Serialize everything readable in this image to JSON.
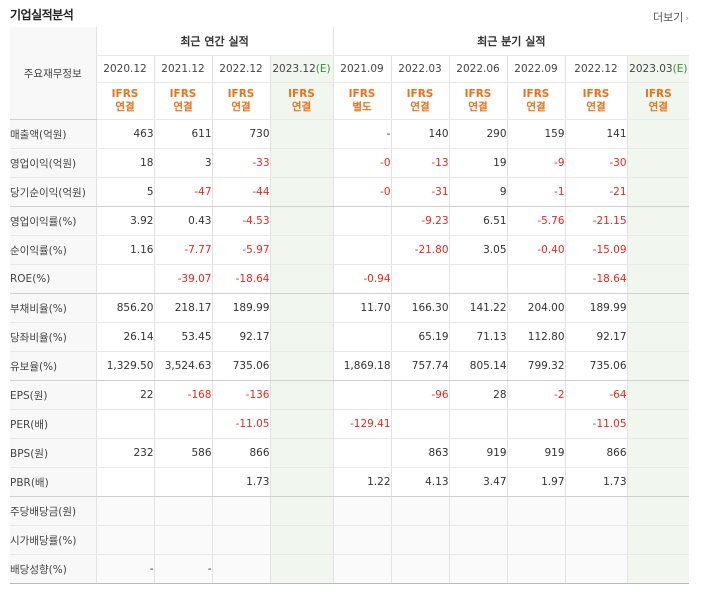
{
  "title": "기업실적분석",
  "more_link": "더보기",
  "row_header": "주요재무정보",
  "annual_header": "최근 연간 실적",
  "quarter_header": "최근 분기 실적",
  "periods": [
    {
      "label": "2020.12",
      "est_mark": "",
      "basis": [
        "IFRS",
        "연결"
      ],
      "est": false
    },
    {
      "label": "2021.12",
      "est_mark": "",
      "basis": [
        "IFRS",
        "연결"
      ],
      "est": false
    },
    {
      "label": "2022.12",
      "est_mark": "",
      "basis": [
        "IFRS",
        "연결"
      ],
      "est": false
    },
    {
      "label": "2023.12",
      "est_mark": "(E)",
      "basis": [
        "IFRS",
        "연결"
      ],
      "est": true
    },
    {
      "label": "2021.09",
      "est_mark": "",
      "basis": [
        "IFRS",
        "별도"
      ],
      "est": false
    },
    {
      "label": "2022.03",
      "est_mark": "",
      "basis": [
        "IFRS",
        "연결"
      ],
      "est": false
    },
    {
      "label": "2022.06",
      "est_mark": "",
      "basis": [
        "IFRS",
        "연결"
      ],
      "est": false
    },
    {
      "label": "2022.09",
      "est_mark": "",
      "basis": [
        "IFRS",
        "연결"
      ],
      "est": false
    },
    {
      "label": "2022.12",
      "est_mark": "",
      "basis": [
        "IFRS",
        "연결"
      ],
      "est": false
    },
    {
      "label": "2023.03",
      "est_mark": "(E)",
      "basis": [
        "IFRS",
        "연결"
      ],
      "est": true
    }
  ],
  "rows": [
    {
      "label": "매출액(억원)",
      "values": [
        "463",
        "611",
        "730",
        "",
        "-",
        "140",
        "290",
        "159",
        "141",
        ""
      ]
    },
    {
      "label": "영업이익(억원)",
      "values": [
        "18",
        "3",
        "-33",
        "",
        "-0",
        "-13",
        "19",
        "-9",
        "-30",
        ""
      ]
    },
    {
      "label": "당기순이익(억원)",
      "values": [
        "5",
        "-47",
        "-44",
        "",
        "-0",
        "-31",
        "9",
        "-1",
        "-21",
        ""
      ],
      "group_end": true
    },
    {
      "label": "영업이익률(%)",
      "values": [
        "3.92",
        "0.43",
        "-4.53",
        "",
        "",
        "-9.23",
        "6.51",
        "-5.76",
        "-21.15",
        ""
      ]
    },
    {
      "label": "순이익률(%)",
      "values": [
        "1.16",
        "-7.77",
        "-5.97",
        "",
        "",
        "-21.80",
        "3.05",
        "-0.40",
        "-15.09",
        ""
      ]
    },
    {
      "label": "ROE(%)",
      "values": [
        "",
        "-39.07",
        "-18.64",
        "",
        "-0.94",
        "",
        "",
        "",
        "-18.64",
        ""
      ],
      "group_end": true
    },
    {
      "label": "부채비율(%)",
      "values": [
        "856.20",
        "218.17",
        "189.99",
        "",
        "11.70",
        "166.30",
        "141.22",
        "204.00",
        "189.99",
        ""
      ]
    },
    {
      "label": "당좌비율(%)",
      "values": [
        "26.14",
        "53.45",
        "92.17",
        "",
        "",
        "65.19",
        "71.13",
        "112.80",
        "92.17",
        ""
      ]
    },
    {
      "label": "유보율(%)",
      "values": [
        "1,329.50",
        "3,524.63",
        "735.06",
        "",
        "1,869.18",
        "757.74",
        "805.14",
        "799.32",
        "735.06",
        ""
      ],
      "group_end": true
    },
    {
      "label": "EPS(원)",
      "values": [
        "22",
        "-168",
        "-136",
        "",
        "",
        "-96",
        "28",
        "-2",
        "-64",
        ""
      ]
    },
    {
      "label": "PER(배)",
      "values": [
        "",
        "",
        "-11.05",
        "",
        "-129.41",
        "",
        "",
        "",
        "-11.05",
        ""
      ]
    },
    {
      "label": "BPS(원)",
      "values": [
        "232",
        "586",
        "866",
        "",
        "",
        "863",
        "919",
        "919",
        "866",
        ""
      ]
    },
    {
      "label": "PBR(배)",
      "values": [
        "",
        "",
        "1.73",
        "",
        "1.22",
        "4.13",
        "3.47",
        "1.97",
        "1.73",
        ""
      ],
      "group_end": true
    },
    {
      "label": "주당배당금(원)",
      "values": [
        "",
        "",
        "",
        "",
        "",
        "",
        "",
        "",
        "",
        ""
      ],
      "shaded": true
    },
    {
      "label": "시가배당률(%)",
      "values": [
        "",
        "",
        "",
        "",
        "",
        "",
        "",
        "",
        "",
        ""
      ],
      "shaded": true
    },
    {
      "label": "배당성향(%)",
      "values": [
        "-",
        "-",
        "",
        "",
        "",
        "",
        "",
        "",
        "",
        ""
      ],
      "shaded": true,
      "last": true
    }
  ]
}
